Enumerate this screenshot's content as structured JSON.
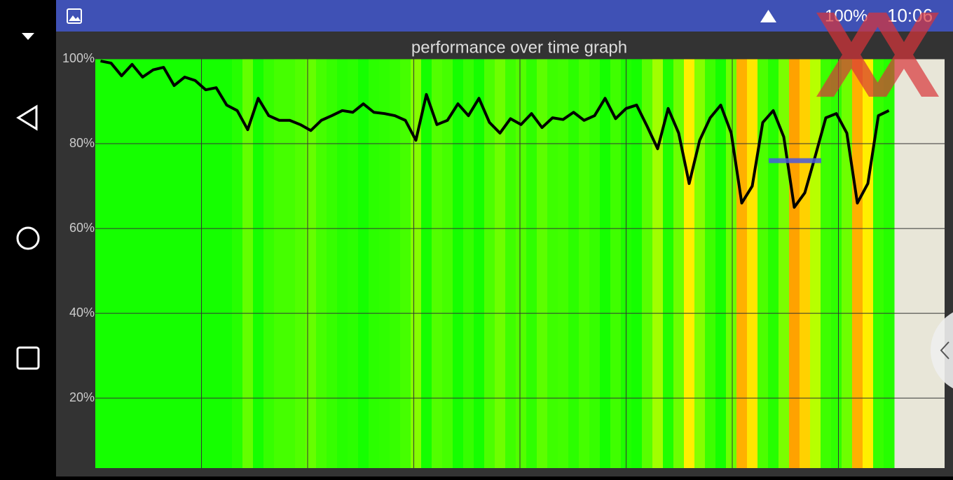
{
  "status_bar": {
    "battery": "100%",
    "time": "10:06"
  },
  "chart_data": {
    "type": "line",
    "title": "performance over time graph",
    "values": [
      99.5,
      99,
      96,
      98.7,
      95.7,
      97.4,
      98,
      93.7,
      95.7,
      94.9,
      92.7,
      93.2,
      89.1,
      87.8,
      83.3,
      90.7,
      86.6,
      85.5,
      85.5,
      84.5,
      83.1,
      85.5,
      86.6,
      87.8,
      87.4,
      89.4,
      87.4,
      87.1,
      86.6,
      85.5,
      80.8,
      91.6,
      84.5,
      85.5,
      89.4,
      86.6,
      90.7,
      85,
      82.5,
      85.9,
      84.5,
      87.1,
      83.8,
      86.1,
      85.7,
      87.4,
      85.5,
      86.6,
      90.7,
      85.9,
      88.3,
      89.1,
      84.1,
      78.8,
      88.3,
      82.5,
      70.6,
      80.8,
      86.1,
      89.1,
      82.5,
      66,
      70,
      85,
      87.8,
      81.6,
      65,
      68.4,
      77.1,
      86.1,
      87.1,
      82.5,
      66,
      70.6,
      86.6,
      87.8
    ],
    "ylim": [
      3.5,
      100
    ],
    "yticks": [
      {
        "value": 20,
        "label": "20%"
      },
      {
        "value": 40,
        "label": "40%"
      },
      {
        "value": 60,
        "label": "60%"
      },
      {
        "value": 80,
        "label": "80%"
      },
      {
        "value": 100,
        "label": "100%"
      }
    ],
    "grid": true,
    "line_color": "#000000",
    "target": 76,
    "target_color": "#4a5ae0"
  }
}
